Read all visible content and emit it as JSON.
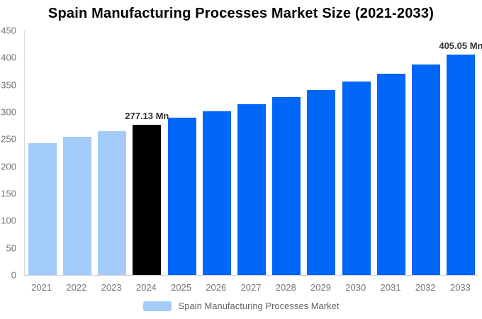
{
  "title": "Spain Manufacturing Processes Market Size (2021-2033)",
  "legend": {
    "label": "Spain Manufacturing Processes Market",
    "swatch_color": "#A3CCFA"
  },
  "colors": {
    "historical_bar": "#A3CCFA",
    "base_year_bar": "#000000",
    "forecast_bar": "#0066F8",
    "y_axis_line": "#D9D9D9",
    "x_axis_line": "#CBD6E4",
    "axis_label": "#757575",
    "data_label": "#333333",
    "title": "#000000"
  },
  "chart_data": {
    "type": "bar",
    "title": "Spain Manufacturing Processes Market Size (2021-2033)",
    "xlabel": "",
    "ylabel": "",
    "unit": "Mn",
    "ylim": [
      0,
      450
    ],
    "y_ticks": [
      0,
      50,
      100,
      150,
      200,
      250,
      300,
      350,
      400,
      450
    ],
    "grid": false,
    "legend_position": "bottom-center",
    "categories": [
      "2021",
      "2022",
      "2023",
      "2024",
      "2025",
      "2026",
      "2027",
      "2028",
      "2029",
      "2030",
      "2031",
      "2032",
      "2033"
    ],
    "series": [
      {
        "name": "Spain Manufacturing Processes Market",
        "values": [
          243,
          254,
          265,
          277.13,
          289,
          301,
          314,
          327,
          341,
          356,
          371,
          388,
          405.05
        ]
      }
    ],
    "point_colors": [
      "#A3CCFA",
      "#A3CCFA",
      "#A3CCFA",
      "#000000",
      "#0066F8",
      "#0066F8",
      "#0066F8",
      "#0066F8",
      "#0066F8",
      "#0066F8",
      "#0066F8",
      "#0066F8",
      "#0066F8"
    ],
    "data_labels": {
      "3": "277.13 Mn",
      "12": "405.05 Mn"
    }
  }
}
